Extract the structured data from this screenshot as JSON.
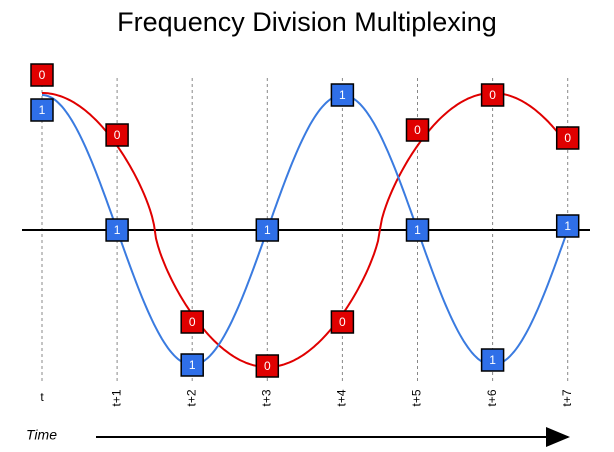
{
  "title": "Frequency Division Multiplexing",
  "time_ticks": [
    "t",
    "t+1",
    "t+2",
    "t+3",
    "t+4",
    "t+5",
    "t+6",
    "t+7"
  ],
  "axis_label": "Time",
  "red_bits": [
    "0",
    "0",
    "0",
    "0",
    "0",
    "0",
    "0",
    "0"
  ],
  "blue_bits": [
    "1",
    "1",
    "1",
    "1",
    "1",
    "1",
    "1",
    "1"
  ]
}
